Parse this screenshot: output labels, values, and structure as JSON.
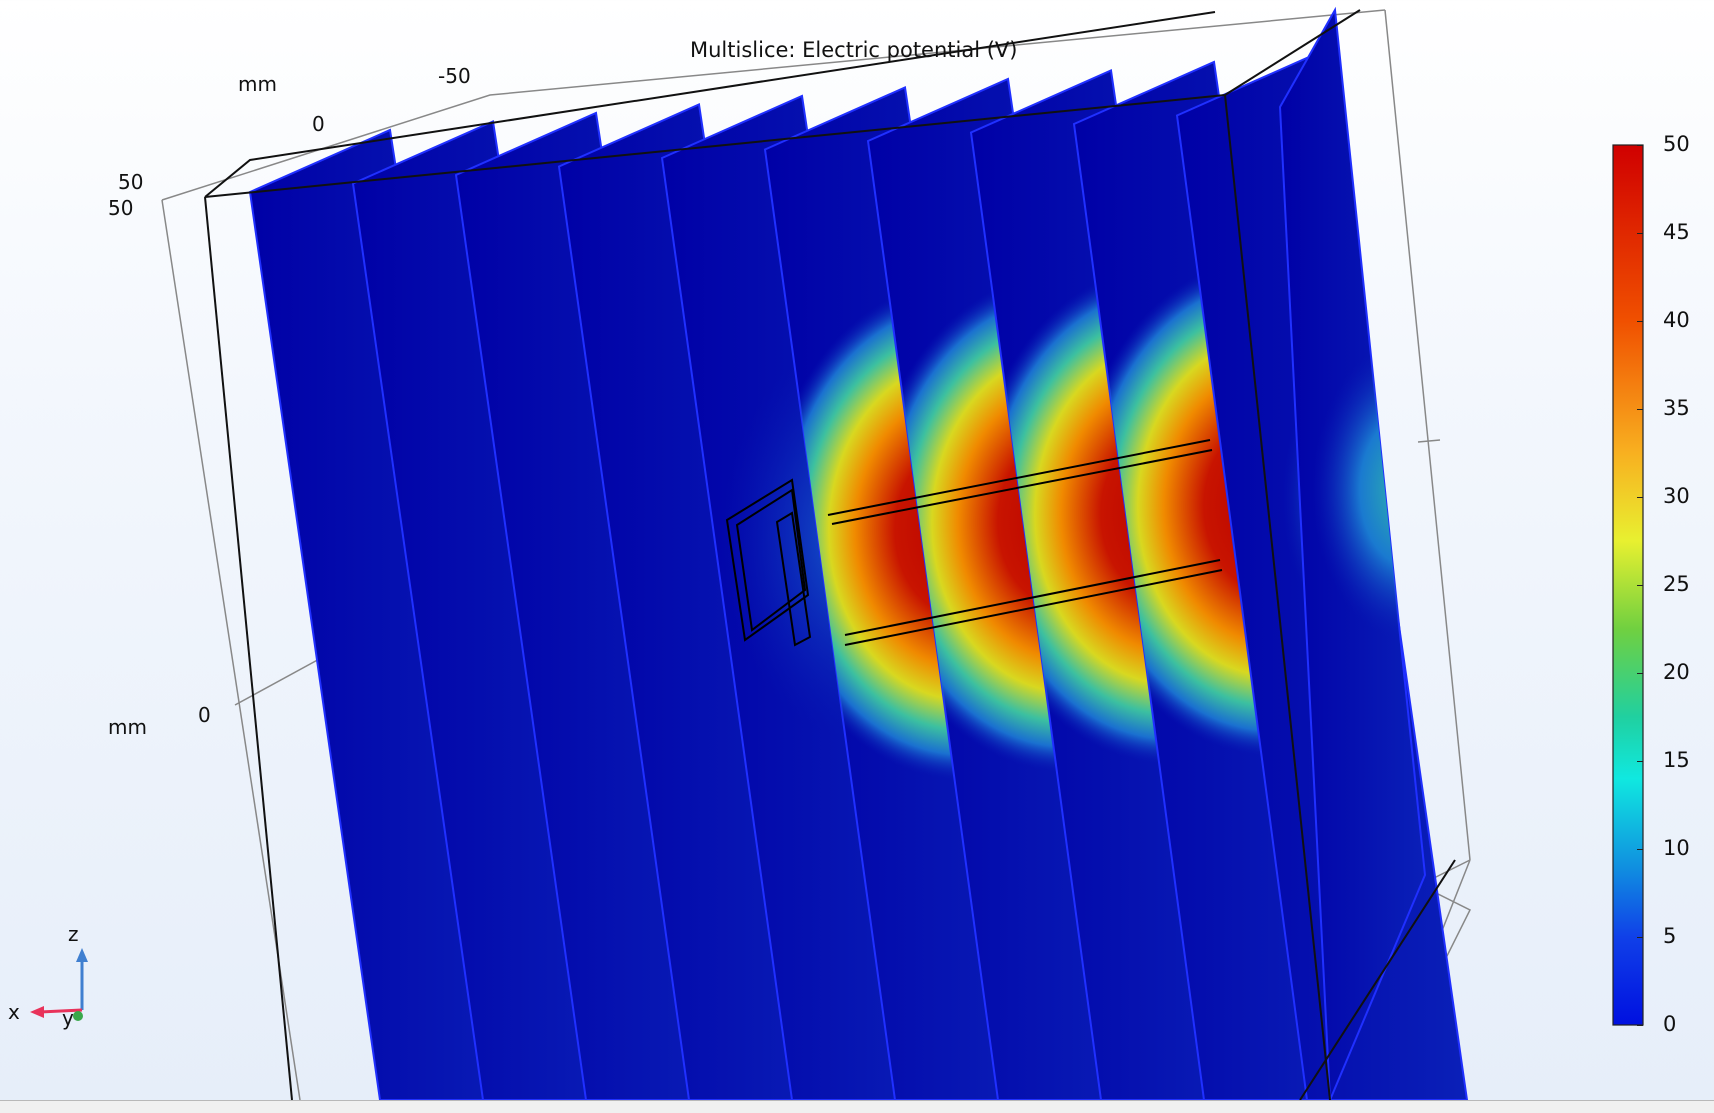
{
  "plot": {
    "title": "Multislice: Electric potential (V)"
  },
  "axes": {
    "unit_top": "mm",
    "unit_left": "mm",
    "tick_top_left": "-50",
    "tick_top_zero": "0",
    "tick_corner_a": "50",
    "tick_corner_b": "50",
    "tick_side_zero": "0"
  },
  "colorbar": {
    "colormap": "rainbow",
    "min": 0,
    "max": 50,
    "ticks": [
      "50",
      "45",
      "40",
      "35",
      "30",
      "25",
      "20",
      "15",
      "10",
      "5",
      "0"
    ]
  },
  "triad": {
    "x_label": "x",
    "y_label": "y",
    "z_label": "z",
    "colors": {
      "x": "#e8325a",
      "y": "#3aa84a",
      "z": "#3f7fd0"
    }
  },
  "slices": {
    "count": 11,
    "peak_potential_by_slice": [
      0,
      0,
      1,
      3,
      12,
      50,
      50,
      50,
      50,
      42,
      26
    ]
  }
}
